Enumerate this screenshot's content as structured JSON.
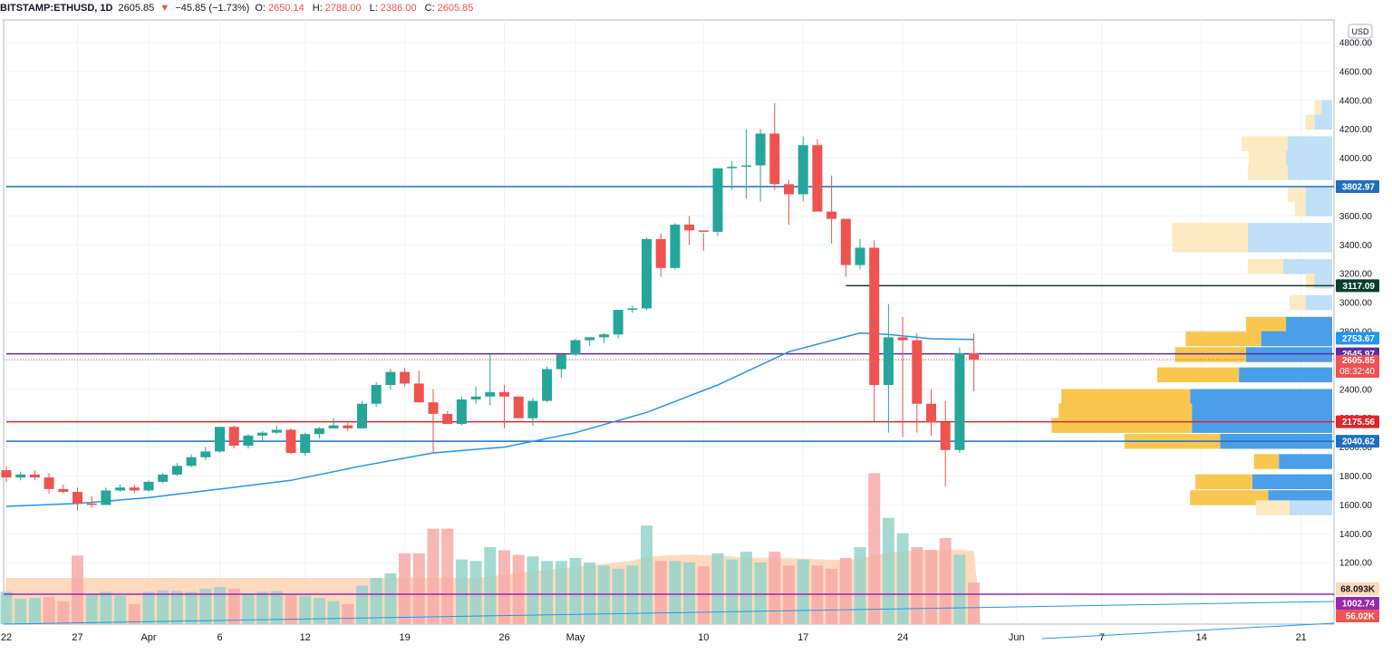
{
  "header": {
    "symbol": "BITSTAMP:ETHUSD, 1D",
    "price": "2605.85",
    "change_arrow": "▼",
    "change": "−45.85 (−1.73%)",
    "open_label": "O:",
    "open": "2650.14",
    "high_label": "H:",
    "high": "2788.00",
    "low_label": "L:",
    "low": "2386.00",
    "close_label": "C:",
    "close": "2605.85"
  },
  "currency_badge": "USD",
  "chart_data": {
    "type": "candlestick",
    "y_range": [
      1400,
      4900
    ],
    "y_ticks": [
      4800,
      4600,
      4400,
      4200,
      4000,
      3800,
      3600,
      3400,
      3200,
      3000,
      2800,
      2600,
      2400,
      2200,
      2000,
      1800,
      1600,
      1400,
      1200
    ],
    "x_ticks": [
      {
        "label": "22",
        "day": 0
      },
      {
        "label": "27",
        "day": 5
      },
      {
        "label": "Apr",
        "day": 10
      },
      {
        "label": "6",
        "day": 15
      },
      {
        "label": "12",
        "day": 21
      },
      {
        "label": "19",
        "day": 28
      },
      {
        "label": "26",
        "day": 35
      },
      {
        "label": "May",
        "day": 40
      },
      {
        "label": "10",
        "day": 49
      },
      {
        "label": "17",
        "day": 56
      },
      {
        "label": "24",
        "day": 63
      },
      {
        "label": "Jun",
        "day": 71
      },
      {
        "label": "7",
        "day": 77
      },
      {
        "label": "14",
        "day": 84
      },
      {
        "label": "21",
        "day": 91
      }
    ],
    "candles": [
      [
        0,
        1840,
        1870,
        1760,
        1790
      ],
      [
        1,
        1790,
        1830,
        1770,
        1810
      ],
      [
        2,
        1810,
        1840,
        1770,
        1790
      ],
      [
        3,
        1790,
        1820,
        1680,
        1710
      ],
      [
        4,
        1710,
        1740,
        1680,
        1690
      ],
      [
        5,
        1690,
        1720,
        1560,
        1610
      ],
      [
        6,
        1610,
        1660,
        1580,
        1600
      ],
      [
        7,
        1600,
        1720,
        1600,
        1700
      ],
      [
        8,
        1700,
        1740,
        1690,
        1720
      ],
      [
        9,
        1720,
        1740,
        1680,
        1700
      ],
      [
        10,
        1700,
        1770,
        1690,
        1760
      ],
      [
        11,
        1760,
        1820,
        1750,
        1810
      ],
      [
        12,
        1810,
        1890,
        1800,
        1870
      ],
      [
        13,
        1870,
        1950,
        1860,
        1930
      ],
      [
        14,
        1930,
        2000,
        1910,
        1970
      ],
      [
        15,
        1970,
        2140,
        1960,
        2140
      ],
      [
        16,
        2140,
        2150,
        1990,
        2010
      ],
      [
        17,
        2010,
        2090,
        1990,
        2080
      ],
      [
        18,
        2080,
        2110,
        2040,
        2100
      ],
      [
        19,
        2100,
        2150,
        2090,
        2120
      ],
      [
        20,
        2120,
        2130,
        1950,
        1960
      ],
      [
        21,
        1960,
        2100,
        1940,
        2090
      ],
      [
        22,
        2090,
        2140,
        2060,
        2130
      ],
      [
        23,
        2130,
        2200,
        2130,
        2150
      ],
      [
        24,
        2150,
        2170,
        2110,
        2130
      ],
      [
        25,
        2130,
        2320,
        2130,
        2300
      ],
      [
        26,
        2300,
        2450,
        2280,
        2430
      ],
      [
        27,
        2430,
        2540,
        2400,
        2520
      ],
      [
        28,
        2520,
        2550,
        2420,
        2440
      ],
      [
        29,
        2440,
        2530,
        2320,
        2310
      ],
      [
        30,
        2310,
        2400,
        1960,
        2230
      ],
      [
        31,
        2230,
        2250,
        2170,
        2160
      ],
      [
        32,
        2160,
        2350,
        2150,
        2330
      ],
      [
        33,
        2330,
        2420,
        2300,
        2350
      ],
      [
        34,
        2350,
        2640,
        2290,
        2380
      ],
      [
        35,
        2380,
        2430,
        2130,
        2350
      ],
      [
        36,
        2350,
        2340,
        2200,
        2200
      ],
      [
        37,
        2200,
        2340,
        2150,
        2320
      ],
      [
        38,
        2320,
        2560,
        2310,
        2540
      ],
      [
        39,
        2540,
        2640,
        2480,
        2640
      ],
      [
        40,
        2640,
        2750,
        2630,
        2740
      ],
      [
        41,
        2740,
        2760,
        2700,
        2760
      ],
      [
        42,
        2760,
        2790,
        2720,
        2780
      ],
      [
        43,
        2780,
        2950,
        2750,
        2950
      ],
      [
        44,
        2950,
        2980,
        2930,
        2960
      ],
      [
        45,
        2960,
        3450,
        2950,
        3440
      ],
      [
        46,
        3440,
        3480,
        3180,
        3240
      ],
      [
        47,
        3240,
        3550,
        3230,
        3540
      ],
      [
        48,
        3540,
        3600,
        3400,
        3500
      ],
      [
        49,
        3500,
        3480,
        3360,
        3490
      ],
      [
        50,
        3490,
        3930,
        3460,
        3930
      ],
      [
        51,
        3930,
        3980,
        3780,
        3940
      ],
      [
        52,
        3940,
        4200,
        3720,
        3950
      ],
      [
        53,
        3950,
        4200,
        3700,
        4170
      ],
      [
        54,
        4170,
        4380,
        3780,
        3820
      ],
      [
        55,
        3820,
        3850,
        3540,
        3750
      ],
      [
        56,
        3750,
        4150,
        3700,
        4090
      ],
      [
        57,
        4090,
        4130,
        3650,
        3630
      ],
      [
        58,
        3630,
        3880,
        3410,
        3580
      ],
      [
        59,
        3580,
        3570,
        3180,
        3260
      ],
      [
        60,
        3260,
        3440,
        3230,
        3380
      ],
      [
        61,
        3380,
        3430,
        2180,
        2430
      ],
      [
        62,
        2430,
        2990,
        2100,
        2760
      ],
      [
        63,
        2760,
        2900,
        2070,
        2740
      ],
      [
        64,
        2740,
        2790,
        2100,
        2300
      ],
      [
        65,
        2300,
        2400,
        2080,
        2170
      ],
      [
        66,
        2170,
        2320,
        1730,
        1980
      ],
      [
        67,
        1980,
        2690,
        1960,
        2650
      ],
      [
        68,
        2650,
        2788,
        2386,
        2606
      ]
    ],
    "volumes": [
      [
        0,
        210,
        "up"
      ],
      [
        1,
        165,
        "up"
      ],
      [
        2,
        170,
        "up"
      ],
      [
        3,
        175,
        "dn"
      ],
      [
        4,
        150,
        "dn"
      ],
      [
        5,
        445,
        "dn"
      ],
      [
        6,
        190,
        "up"
      ],
      [
        7,
        210,
        "up"
      ],
      [
        8,
        185,
        "up"
      ],
      [
        9,
        130,
        "dn"
      ],
      [
        10,
        210,
        "up"
      ],
      [
        11,
        220,
        "up"
      ],
      [
        12,
        215,
        "up"
      ],
      [
        13,
        210,
        "up"
      ],
      [
        14,
        230,
        "up"
      ],
      [
        15,
        240,
        "up"
      ],
      [
        16,
        230,
        "dn"
      ],
      [
        17,
        200,
        "up"
      ],
      [
        18,
        210,
        "up"
      ],
      [
        19,
        215,
        "up"
      ],
      [
        20,
        190,
        "dn"
      ],
      [
        21,
        185,
        "up"
      ],
      [
        22,
        170,
        "up"
      ],
      [
        23,
        150,
        "up"
      ],
      [
        24,
        130,
        "dn"
      ],
      [
        25,
        250,
        "up"
      ],
      [
        26,
        300,
        "up"
      ],
      [
        27,
        330,
        "up"
      ],
      [
        28,
        460,
        "dn"
      ],
      [
        29,
        460,
        "dn"
      ],
      [
        30,
        620,
        "dn"
      ],
      [
        31,
        620,
        "dn"
      ],
      [
        32,
        420,
        "up"
      ],
      [
        33,
        410,
        "up"
      ],
      [
        34,
        500,
        "up"
      ],
      [
        35,
        480,
        "dn"
      ],
      [
        36,
        450,
        "dn"
      ],
      [
        37,
        440,
        "up"
      ],
      [
        38,
        410,
        "up"
      ],
      [
        39,
        410,
        "up"
      ],
      [
        40,
        430,
        "up"
      ],
      [
        41,
        400,
        "up"
      ],
      [
        42,
        380,
        "up"
      ],
      [
        43,
        360,
        "up"
      ],
      [
        44,
        380,
        "up"
      ],
      [
        45,
        640,
        "up"
      ],
      [
        46,
        410,
        "dn"
      ],
      [
        47,
        410,
        "up"
      ],
      [
        48,
        400,
        "up"
      ],
      [
        49,
        375,
        "dn"
      ],
      [
        50,
        460,
        "up"
      ],
      [
        51,
        420,
        "up"
      ],
      [
        52,
        470,
        "up"
      ],
      [
        53,
        400,
        "up"
      ],
      [
        54,
        470,
        "dn"
      ],
      [
        55,
        380,
        "dn"
      ],
      [
        56,
        420,
        "up"
      ],
      [
        57,
        380,
        "dn"
      ],
      [
        58,
        360,
        "dn"
      ],
      [
        59,
        430,
        "dn"
      ],
      [
        60,
        500,
        "up"
      ],
      [
        61,
        980,
        "dn"
      ],
      [
        62,
        690,
        "up"
      ],
      [
        63,
        590,
        "up"
      ],
      [
        64,
        500,
        "dn"
      ],
      [
        65,
        480,
        "dn"
      ],
      [
        66,
        560,
        "dn"
      ],
      [
        67,
        450,
        "up"
      ],
      [
        68,
        270,
        "dn"
      ]
    ],
    "volume_max": 1000,
    "ma_line": [
      [
        0,
        1590
      ],
      [
        5,
        1610
      ],
      [
        10,
        1650
      ],
      [
        15,
        1710
      ],
      [
        20,
        1770
      ],
      [
        25,
        1870
      ],
      [
        30,
        1960
      ],
      [
        35,
        2000
      ],
      [
        40,
        2100
      ],
      [
        45,
        2240
      ],
      [
        50,
        2430
      ],
      [
        55,
        2660
      ],
      [
        60,
        2790
      ],
      [
        62,
        2780
      ],
      [
        65,
        2750
      ],
      [
        68,
        2745
      ]
    ],
    "volume_profile": [
      {
        "price": 4350,
        "light": true,
        "up": 8,
        "dn": 12
      },
      {
        "price": 4250,
        "light": true,
        "up": 10,
        "dn": 20
      },
      {
        "price": 4100,
        "light": true,
        "up": 52,
        "dn": 50
      },
      {
        "price": 4000,
        "light": true,
        "up": 42,
        "dn": 52
      },
      {
        "price": 3900,
        "light": true,
        "up": 45,
        "dn": 50
      },
      {
        "price": 3750,
        "light": true,
        "up": 20,
        "dn": 30
      },
      {
        "price": 3650,
        "light": true,
        "up": 12,
        "dn": 30
      },
      {
        "price": 3500,
        "light": true,
        "up": 85,
        "dn": 95
      },
      {
        "price": 3400,
        "light": true,
        "up": 85,
        "dn": 95
      },
      {
        "price": 3250,
        "light": true,
        "up": 40,
        "dn": 55
      },
      {
        "price": 3150,
        "light": true,
        "up": 10,
        "dn": 20
      },
      {
        "price": 3000,
        "light": true,
        "up": 18,
        "dn": 30
      },
      {
        "price": 2850,
        "light": false,
        "up": 45,
        "dn": 52
      },
      {
        "price": 2750,
        "light": false,
        "up": 85,
        "dn": 80
      },
      {
        "price": 2640,
        "light": false,
        "up": 80,
        "dn": 97
      },
      {
        "price": 2500,
        "light": false,
        "up": 92,
        "dn": 105
      },
      {
        "price": 2350,
        "light": false,
        "up": 145,
        "dn": 160
      },
      {
        "price": 2250,
        "light": false,
        "up": 150,
        "dn": 158
      },
      {
        "price": 2150,
        "light": false,
        "up": 158,
        "dn": 158
      },
      {
        "price": 2040,
        "light": false,
        "up": 108,
        "dn": 126
      },
      {
        "price": 1900,
        "light": false,
        "up": 28,
        "dn": 60
      },
      {
        "price": 1760,
        "light": false,
        "up": 64,
        "dn": 90
      },
      {
        "price": 1650,
        "light": false,
        "up": 88,
        "dn": 72
      },
      {
        "price": 1580,
        "light": true,
        "up": 38,
        "dn": 48
      }
    ],
    "levels": [
      {
        "price": 3802.97,
        "label": "3802.97",
        "color": "#1e6fc2",
        "from_day": 0
      },
      {
        "price": 3117.09,
        "label": "3117.09",
        "color": "#0b3d2e",
        "from_day": 59
      },
      {
        "price": 2645.97,
        "label": "2645.97",
        "color": "#5b2d9e",
        "from_day": 0
      },
      {
        "price": 2175.56,
        "label": "2175.56",
        "color": "#e0262b",
        "from_day": 0
      },
      {
        "price": 2040.62,
        "label": "2040.62",
        "color": "#1e6fc2",
        "from_day": 0
      }
    ],
    "current_price": {
      "price": 2605.85,
      "label": "2605.85",
      "countdown": "08:32:40",
      "color": "#ef5350"
    },
    "ma_price_tag": {
      "price": 2753.67,
      "label": "2753.67",
      "color": "#2196f3"
    },
    "volume_tags": [
      {
        "label": "68.093K",
        "color": "#ffd8b8",
        "text_color": "#131722",
        "y_frac": 0.22
      },
      {
        "label": "1002.74",
        "color": "#9c27b0",
        "text_color": "#ffffff",
        "y_frac": 0.38
      },
      {
        "label": "56.02K",
        "color": "#ef5350",
        "text_color": "#ffffff",
        "y_frac": 0.57
      }
    ],
    "volume_ma_value": 1002.74,
    "colors": {
      "up": "#26a69a",
      "down": "#ef5350",
      "ma": "#2196f3",
      "grid": "#f0f3fa",
      "vp_up": "#f9c74f",
      "vp_dn": "#4a9fe8",
      "vp_up_light": "#fde9c2",
      "vp_dn_light": "#bfe0f7",
      "vol_up": "#94d3ca",
      "vol_dn": "#f7a9a7",
      "vol_ma_fill": "#ffcfad"
    }
  }
}
